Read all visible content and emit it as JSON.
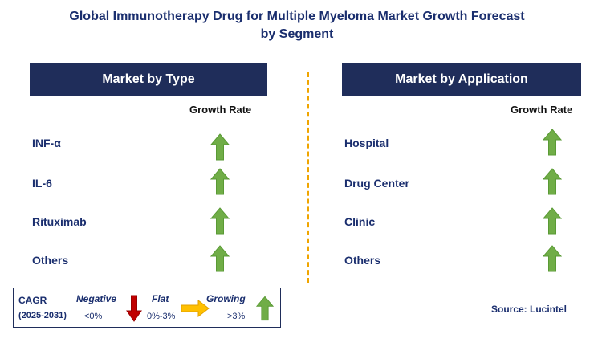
{
  "title_line1": "Global Immunotherapy Drug for Multiple Myeloma Market Growth Forecast",
  "title_line2": "by Segment",
  "left_panel": {
    "header": "Market by Type",
    "growth_label": "Growth Rate",
    "rows": [
      {
        "label": "INF-α",
        "trend": "growing"
      },
      {
        "label": "IL-6",
        "trend": "growing"
      },
      {
        "label": "Rituximab",
        "trend": "growing"
      },
      {
        "label": "Others",
        "trend": "growing"
      }
    ]
  },
  "right_panel": {
    "header": "Market by Application",
    "growth_label": "Growth Rate",
    "rows": [
      {
        "label": "Hospital",
        "trend": "growing"
      },
      {
        "label": "Drug Center",
        "trend": "growing"
      },
      {
        "label": "Clinic",
        "trend": "growing"
      },
      {
        "label": "Others",
        "trend": "growing"
      }
    ]
  },
  "legend": {
    "cagr": "CAGR",
    "period": "(2025-2031)",
    "negative": {
      "label": "Negative",
      "range": "<0%",
      "icon": "down-arrow-icon",
      "color": "#c00000"
    },
    "flat": {
      "label": "Flat",
      "range": "0%-3%",
      "icon": "right-arrow-icon",
      "color": "#ffc000"
    },
    "growing": {
      "label": "Growing",
      "range": ">3%",
      "icon": "up-arrow-icon",
      "color": "#70ad47"
    }
  },
  "source": "Source: Lucintel",
  "colors": {
    "header_bg": "#1f2d5a",
    "text": "#1a2e6e",
    "divider": "#f0a500",
    "growing": "#70ad47"
  }
}
